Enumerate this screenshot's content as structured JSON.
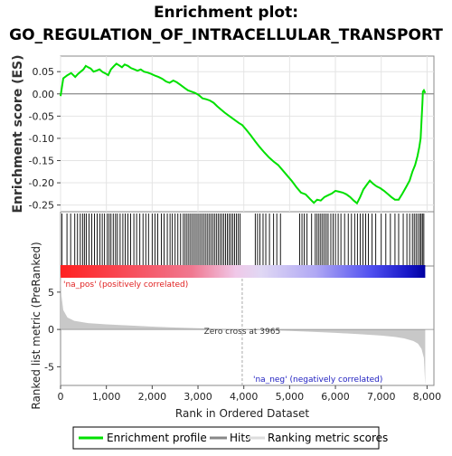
{
  "chart_data": {
    "type": "line",
    "title_line1": "Enrichment plot:",
    "title_line2": "GO_REGULATION_OF_INTRACELLULAR_TRANSPORT",
    "es_panel": {
      "ylabel": "Enrichment score (ES)",
      "ylim": [
        -0.265,
        0.085
      ],
      "yticks": [
        0.05,
        0.0,
        -0.05,
        -0.1,
        -0.15,
        -0.2,
        -0.25
      ],
      "ytick_labels": [
        "0.05",
        "0.00",
        "-0.05",
        "-0.10",
        "-0.15",
        "-0.20",
        "-0.25"
      ],
      "series_name": "Enrichment profile",
      "color": "#00e000",
      "points": [
        [
          0,
          -0.005
        ],
        [
          60,
          0.035
        ],
        [
          150,
          0.042
        ],
        [
          230,
          0.047
        ],
        [
          320,
          0.038
        ],
        [
          380,
          0.045
        ],
        [
          440,
          0.05
        ],
        [
          500,
          0.055
        ],
        [
          550,
          0.063
        ],
        [
          600,
          0.06
        ],
        [
          660,
          0.057
        ],
        [
          720,
          0.05
        ],
        [
          780,
          0.052
        ],
        [
          850,
          0.055
        ],
        [
          920,
          0.049
        ],
        [
          980,
          0.046
        ],
        [
          1040,
          0.042
        ],
        [
          1100,
          0.055
        ],
        [
          1160,
          0.062
        ],
        [
          1220,
          0.068
        ],
        [
          1280,
          0.064
        ],
        [
          1340,
          0.06
        ],
        [
          1400,
          0.066
        ],
        [
          1470,
          0.063
        ],
        [
          1540,
          0.058
        ],
        [
          1610,
          0.055
        ],
        [
          1680,
          0.052
        ],
        [
          1750,
          0.055
        ],
        [
          1820,
          0.05
        ],
        [
          1900,
          0.048
        ],
        [
          1980,
          0.045
        ],
        [
          2060,
          0.041
        ],
        [
          2140,
          0.038
        ],
        [
          2220,
          0.034
        ],
        [
          2300,
          0.028
        ],
        [
          2380,
          0.025
        ],
        [
          2460,
          0.03
        ],
        [
          2540,
          0.026
        ],
        [
          2620,
          0.02
        ],
        [
          2700,
          0.014
        ],
        [
          2780,
          0.008
        ],
        [
          2860,
          0.005
        ],
        [
          2940,
          0.002
        ],
        [
          3020,
          -0.003
        ],
        [
          3100,
          -0.01
        ],
        [
          3180,
          -0.012
        ],
        [
          3260,
          -0.015
        ],
        [
          3340,
          -0.02
        ],
        [
          3420,
          -0.028
        ],
        [
          3500,
          -0.035
        ],
        [
          3580,
          -0.042
        ],
        [
          3660,
          -0.048
        ],
        [
          3740,
          -0.054
        ],
        [
          3820,
          -0.06
        ],
        [
          3900,
          -0.066
        ],
        [
          3965,
          -0.07
        ],
        [
          4050,
          -0.08
        ],
        [
          4150,
          -0.093
        ],
        [
          4250,
          -0.107
        ],
        [
          4350,
          -0.12
        ],
        [
          4450,
          -0.132
        ],
        [
          4550,
          -0.143
        ],
        [
          4650,
          -0.152
        ],
        [
          4750,
          -0.16
        ],
        [
          4850,
          -0.172
        ],
        [
          4950,
          -0.184
        ],
        [
          5050,
          -0.196
        ],
        [
          5150,
          -0.21
        ],
        [
          5250,
          -0.222
        ],
        [
          5350,
          -0.226
        ],
        [
          5450,
          -0.237
        ],
        [
          5530,
          -0.245
        ],
        [
          5600,
          -0.238
        ],
        [
          5680,
          -0.24
        ],
        [
          5760,
          -0.232
        ],
        [
          5840,
          -0.228
        ],
        [
          5920,
          -0.224
        ],
        [
          6000,
          -0.218
        ],
        [
          6080,
          -0.22
        ],
        [
          6160,
          -0.222
        ],
        [
          6240,
          -0.226
        ],
        [
          6320,
          -0.232
        ],
        [
          6400,
          -0.24
        ],
        [
          6470,
          -0.246
        ],
        [
          6540,
          -0.232
        ],
        [
          6610,
          -0.215
        ],
        [
          6680,
          -0.205
        ],
        [
          6750,
          -0.195
        ],
        [
          6820,
          -0.202
        ],
        [
          6900,
          -0.208
        ],
        [
          6980,
          -0.212
        ],
        [
          7060,
          -0.218
        ],
        [
          7140,
          -0.225
        ],
        [
          7220,
          -0.232
        ],
        [
          7300,
          -0.238
        ],
        [
          7380,
          -0.238
        ],
        [
          7460,
          -0.225
        ],
        [
          7540,
          -0.21
        ],
        [
          7620,
          -0.195
        ],
        [
          7680,
          -0.175
        ],
        [
          7740,
          -0.16
        ],
        [
          7790,
          -0.14
        ],
        [
          7830,
          -0.12
        ],
        [
          7860,
          -0.1
        ],
        [
          7880,
          -0.06
        ],
        [
          7900,
          -0.02
        ],
        [
          7910,
          0.005
        ],
        [
          7930,
          0.008
        ],
        [
          7960,
          0.002
        ]
      ]
    },
    "hits_panel": {
      "positions": [
        30,
        140,
        220,
        310,
        370,
        430,
        480,
        520,
        560,
        620,
        680,
        740,
        800,
        860,
        910,
        960,
        1020,
        1060,
        1100,
        1150,
        1200,
        1240,
        1300,
        1360,
        1410,
        1470,
        1530,
        1600,
        1660,
        1730,
        1800,
        1860,
        1920,
        2000,
        2060,
        2120,
        2200,
        2260,
        2330,
        2390,
        2440,
        2500,
        2560,
        2620,
        2680,
        2720,
        2760,
        2800,
        2840,
        2880,
        2920,
        2960,
        3000,
        3040,
        3080,
        3120,
        3160,
        3200,
        3240,
        3280,
        3320,
        3360,
        3400,
        3440,
        3480,
        3520,
        3560,
        3600,
        3640,
        3680,
        3720,
        3760,
        3800,
        3840,
        3880,
        3920,
        4250,
        4300,
        4350,
        4420,
        4480,
        4560,
        4650,
        4720,
        4800,
        5220,
        5270,
        5320,
        5380,
        5480,
        5560,
        5600,
        5640,
        5680,
        5720,
        5760,
        5800,
        5840,
        5900,
        5950,
        6000,
        6060,
        6120,
        6200,
        6280,
        6350,
        6420,
        6480,
        6540,
        6600,
        6660,
        6720,
        6800,
        6880,
        7000,
        7100,
        7200,
        7300,
        7380,
        7480,
        7560,
        7620,
        7680,
        7720,
        7760,
        7800,
        7840,
        7870,
        7900,
        7930
      ]
    },
    "metric_panel": {
      "ylabel": "Ranked list metric (PreRanked)",
      "ylim": [
        -7.5,
        8.5
      ],
      "yticks": [
        5,
        0,
        -5
      ],
      "ytick_labels": [
        "5",
        "0",
        "-5"
      ],
      "series_name": "Ranking metric scores",
      "curve": [
        [
          0,
          7.5
        ],
        [
          20,
          4.5
        ],
        [
          60,
          2.6
        ],
        [
          150,
          1.6
        ],
        [
          300,
          1.15
        ],
        [
          600,
          0.85
        ],
        [
          1000,
          0.68
        ],
        [
          1500,
          0.52
        ],
        [
          2000,
          0.38
        ],
        [
          2500,
          0.26
        ],
        [
          3000,
          0.16
        ],
        [
          3500,
          0.07
        ],
        [
          3965,
          0.0
        ],
        [
          4500,
          -0.09
        ],
        [
          5000,
          -0.2
        ],
        [
          5500,
          -0.32
        ],
        [
          6000,
          -0.46
        ],
        [
          6500,
          -0.62
        ],
        [
          7000,
          -0.82
        ],
        [
          7300,
          -1.0
        ],
        [
          7500,
          -1.2
        ],
        [
          7700,
          -1.55
        ],
        [
          7800,
          -1.9
        ],
        [
          7880,
          -2.6
        ],
        [
          7930,
          -3.8
        ],
        [
          7960,
          -7.5
        ]
      ],
      "zero_cross_label": "Zero cross at 3965",
      "zero_cross": 3965,
      "pos_label": "'na_pos' (positively correlated)",
      "neg_label": "'na_neg' (negatively correlated)"
    },
    "xaxis": {
      "label": "Rank in Ordered Dataset",
      "xlim": [
        0,
        8150
      ],
      "max_rank": 7960,
      "ticks": [
        0,
        1000,
        2000,
        3000,
        4000,
        5000,
        6000,
        7000,
        8000
      ],
      "tick_labels": [
        "0",
        "1,000",
        "2,000",
        "3,000",
        "4,000",
        "5,000",
        "6,000",
        "7,000",
        "8,000"
      ]
    },
    "legend": {
      "placement": "bottom",
      "items": [
        {
          "label": "Enrichment profile",
          "color": "#00e000",
          "kind": "line"
        },
        {
          "label": "Hits",
          "color": "#888888",
          "kind": "line"
        },
        {
          "label": "Ranking metric scores",
          "color": "#cccccc",
          "kind": "line"
        }
      ]
    }
  }
}
